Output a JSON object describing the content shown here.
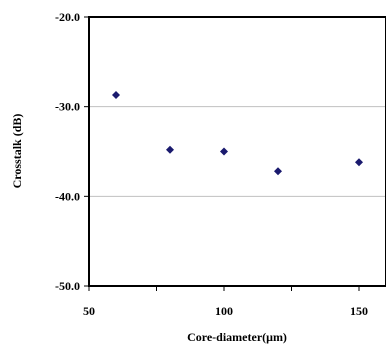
{
  "chart_data": {
    "type": "scatter",
    "xlabel": "Core-diameter(μm)",
    "ylabel": "Crosstalk (dB)",
    "xlim": [
      50,
      160
    ],
    "ylim": [
      -50.0,
      -20.0
    ],
    "x_ticks": [
      50,
      100,
      150
    ],
    "x_tick_labels": [
      "50",
      "100",
      "150"
    ],
    "y_ticks": [
      -20.0,
      -30.0,
      -40.0,
      -50.0
    ],
    "y_tick_labels": [
      "-20.0",
      "-30.0",
      "-40.0",
      "-50.0"
    ],
    "grid": "horizontal",
    "legend": "none",
    "marker": "diamond",
    "marker_color": "#1a1a6e",
    "series": [
      {
        "x": [
          60,
          80,
          100,
          120,
          150
        ],
        "y": [
          -28.7,
          -34.8,
          -35.0,
          -37.2,
          -36.2
        ]
      }
    ]
  }
}
